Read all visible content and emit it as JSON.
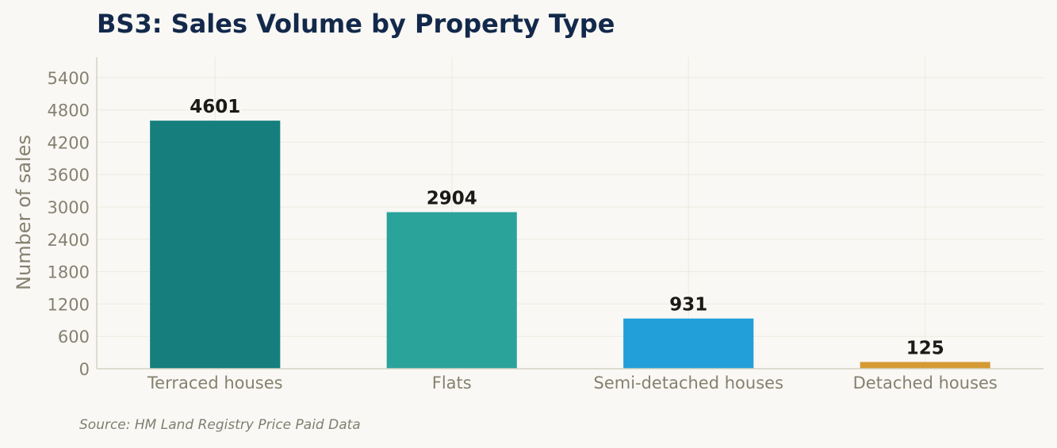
{
  "chart_data": {
    "type": "bar",
    "title": "BS3: Sales Volume by Property Type",
    "xlabel": "",
    "ylabel": "Number of sales",
    "categories": [
      "Terraced houses",
      "Flats",
      "Semi-detached houses",
      "Detached houses"
    ],
    "values": [
      4601,
      2904,
      931,
      125
    ],
    "bar_colors": [
      "#167f7e",
      "#2aa39b",
      "#229fd9",
      "#d69a35"
    ],
    "ylim": [
      0,
      5780
    ],
    "yticks": [
      0,
      600,
      1200,
      1800,
      2400,
      3000,
      3600,
      4200,
      4800,
      5400
    ],
    "grid": true,
    "data_labels": true,
    "source": "Source: HM Land Registry Price Paid Data"
  }
}
